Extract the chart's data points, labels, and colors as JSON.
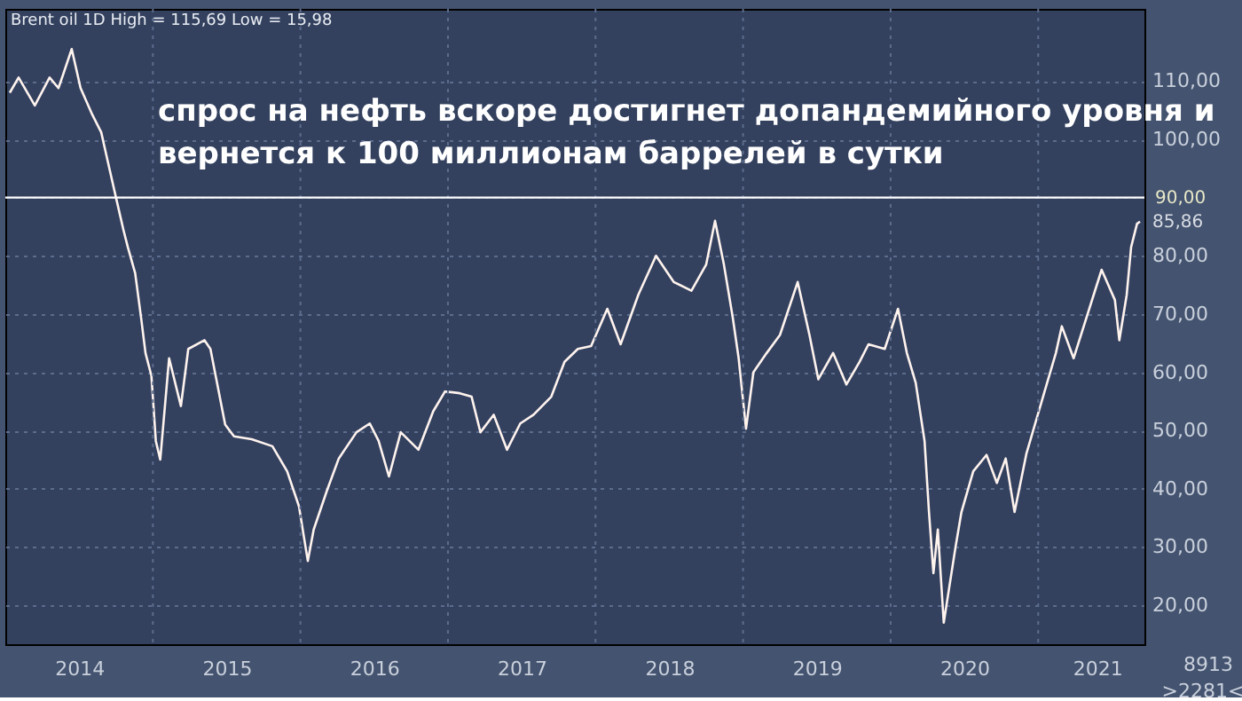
{
  "chart_data": {
    "type": "line",
    "title": "Brent oil 1D High = 115,69 Low = 15,98",
    "x": [
      2014.03,
      2014.09,
      2014.2,
      2014.3,
      2014.36,
      2014.39,
      2014.45,
      2014.51,
      2014.59,
      2014.65,
      2014.69,
      2014.75,
      2014.8,
      2014.83,
      2014.88,
      2014.92,
      2014.95,
      2014.99,
      2015.02,
      2015.05,
      2015.11,
      2015.19,
      2015.24,
      2015.35,
      2015.39,
      2015.49,
      2015.55,
      2015.67,
      2015.81,
      2015.91,
      2015.99,
      2016.05,
      2016.09,
      2016.18,
      2016.26,
      2016.38,
      2016.47,
      2016.53,
      2016.6,
      2016.68,
      2016.8,
      2016.9,
      2016.98,
      2017.08,
      2017.16,
      2017.22,
      2017.31,
      2017.4,
      2017.49,
      2017.58,
      2017.7,
      2017.79,
      2017.88,
      2017.97,
      2018.08,
      2018.17,
      2018.29,
      2018.41,
      2018.53,
      2018.65,
      2018.75,
      2018.81,
      2018.87,
      2018.93,
      2018.97,
      2019.02,
      2019.07,
      2019.16,
      2019.25,
      2019.37,
      2019.45,
      2019.51,
      2019.61,
      2019.7,
      2019.79,
      2019.85,
      2019.96,
      2020.05,
      2020.11,
      2020.17,
      2020.23,
      2020.26,
      2020.29,
      2020.32,
      2020.36,
      2020.44,
      2020.48,
      2020.56,
      2020.65,
      2020.72,
      2020.78,
      2020.84,
      2020.92,
      2021.04,
      2021.12,
      2021.16,
      2021.24,
      2021.43,
      2021.52,
      2021.55,
      2021.6,
      2021.63,
      2021.67,
      2021.69
    ],
    "series": [
      {
        "color": "#fff3ee",
        "values": [
          108,
          110.6,
          105.8,
          110.6,
          108.8,
          111,
          115.5,
          108.8,
          104.2,
          101.2,
          96.7,
          90,
          84.5,
          81.5,
          77,
          69.4,
          63.3,
          59.4,
          48.2,
          45,
          62.4,
          54.2,
          64,
          65.5,
          64,
          51,
          49,
          48.5,
          47.3,
          43,
          37,
          27.6,
          33,
          39.7,
          45.2,
          49.7,
          51.2,
          48.2,
          42.1,
          49.7,
          46.7,
          53.3,
          56.7,
          56.4,
          55.8,
          49.7,
          52.7,
          46.7,
          51.2,
          52.7,
          55.8,
          61.8,
          64,
          64.5,
          70.9,
          64.8,
          73.3,
          80,
          75.5,
          74,
          78.5,
          86,
          78.5,
          69.4,
          62.4,
          50.3,
          60,
          63.3,
          66.4,
          75.5,
          66.4,
          58.8,
          63.3,
          57.9,
          61.8,
          64.8,
          64,
          70.9,
          63.3,
          58.2,
          48.2,
          36,
          25.5,
          33,
          17,
          30,
          36,
          43,
          45.8,
          41,
          45.2,
          36,
          46,
          56.4,
          63.3,
          67.9,
          62.4,
          77.6,
          72.4,
          65.5,
          73.3,
          81.5,
          85.5,
          85.86
        ],
        "value_labels": [
          null,
          null,
          null,
          null,
          null,
          null,
          null,
          null,
          null,
          null,
          null,
          null,
          null,
          null,
          null,
          null,
          null,
          null,
          null,
          null,
          null,
          null,
          null,
          null,
          null,
          null,
          null,
          null,
          null,
          null,
          null,
          null,
          null,
          null,
          null,
          null,
          null,
          null,
          null,
          null,
          null,
          null,
          null,
          null,
          null,
          null,
          null,
          null,
          null,
          null,
          null,
          null,
          null,
          null,
          null,
          null,
          null,
          null,
          null,
          null,
          null,
          null,
          null,
          null,
          null,
          null,
          null,
          null,
          null,
          null,
          null,
          null,
          null,
          null,
          null,
          null,
          null,
          null,
          null,
          null,
          null,
          null,
          null,
          null,
          null,
          null,
          null,
          null,
          null,
          null,
          null,
          null,
          null,
          null,
          null,
          null,
          null,
          null,
          null,
          null,
          null,
          null,
          null,
          "85,86"
        ]
      }
    ],
    "xlim": [
      2014.0,
      2021.72
    ],
    "xticks": [
      {
        "value": 2014.5,
        "label": "2014"
      },
      {
        "value": 2015,
        "label": null
      },
      {
        "value": 2015.5,
        "label": "2015"
      },
      {
        "value": 2016,
        "label": null
      },
      {
        "value": 2016.5,
        "label": "2016"
      },
      {
        "value": 2017,
        "label": null
      },
      {
        "value": 2017.5,
        "label": "2017"
      },
      {
        "value": 2018,
        "label": null
      },
      {
        "value": 2018.5,
        "label": "2018"
      },
      {
        "value": 2019,
        "label": null
      },
      {
        "value": 2019.5,
        "label": "2019"
      },
      {
        "value": 2020,
        "label": null
      },
      {
        "value": 2020.5,
        "label": "2020"
      },
      {
        "value": 2021,
        "label": null
      },
      {
        "value": 2021.4,
        "label": "2021"
      }
    ],
    "ylim": [
      13.3,
      122.4
    ],
    "yticks": [
      {
        "value": 20,
        "label": "20,00"
      },
      {
        "value": 30,
        "label": "30,00"
      },
      {
        "value": 40,
        "label": "40,00"
      },
      {
        "value": 50,
        "label": "50,00"
      },
      {
        "value": 60,
        "label": "60,00"
      },
      {
        "value": 70,
        "label": "70,00"
      },
      {
        "value": 80,
        "label": "80,00"
      },
      {
        "value": 90,
        "label": null
      },
      {
        "value": 100,
        "label": "100,00"
      },
      {
        "value": 110,
        "label": "110,00"
      }
    ],
    "grid": true,
    "ref_lines": [
      {
        "axis": "y",
        "value": 90,
        "label": "90,00",
        "color": "#ffffff"
      }
    ],
    "annotations": [
      "спрос на нефть вскоре достигнет допандемийного уровня и\nвернется к 100 миллионам баррелей в сутки",
      "8913",
      ">2281<"
    ],
    "marker": "none",
    "line_style": "solid"
  }
}
